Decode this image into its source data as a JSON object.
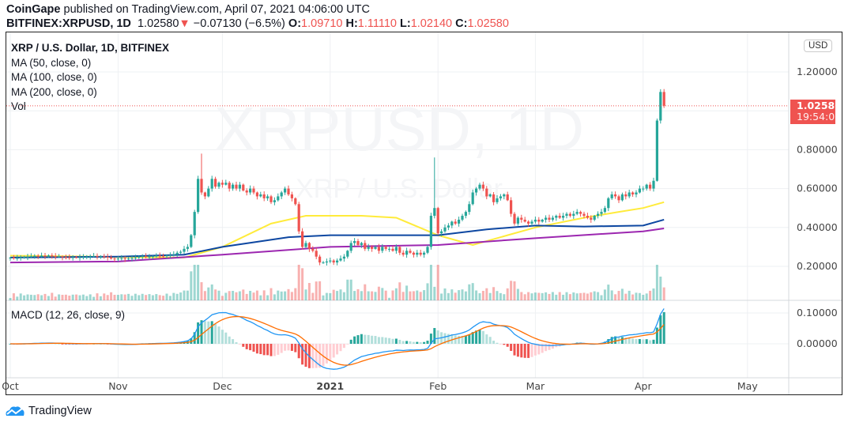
{
  "header": {
    "publisher": "CoinGape",
    "published_text": "published on TradingView.com, April 07, 2021 04:06:00 UTC",
    "symbol": "BITFINEX:XRPUSD, 1D",
    "last": "1.02580",
    "change": "−0.07130 (−6.5%)",
    "o_label": "O:",
    "o": "1.09710",
    "h_label": "H:",
    "h": "1.11110",
    "l_label": "L:",
    "l": "1.02140",
    "c_label": "C:",
    "c": "1.02580",
    "down_color": "#ef5350"
  },
  "legend": {
    "title": "XRP / U.S. Dollar, 1D, BITFINEX",
    "ma50": "MA (50, close, 0)",
    "ma100": "MA (100, close, 0)",
    "ma200": "MA (200, close, 0)",
    "vol": "Vol",
    "macd": "MACD (12, 26, close, 9)"
  },
  "watermark": {
    "line1": "XRPUSD, 1D",
    "line2": "XRP / U.S. Dollar"
  },
  "price_axis": {
    "currency": "USD",
    "last_price": "1.02580",
    "countdown": "19:54:02"
  },
  "footer": {
    "brand": "TradingView"
  },
  "chart_data": {
    "type": "candlestick",
    "start_date": "2020-10-01",
    "closes": [
      0.245,
      0.242,
      0.243,
      0.246,
      0.248,
      0.25,
      0.252,
      0.254,
      0.252,
      0.255,
      0.253,
      0.256,
      0.252,
      0.25,
      0.251,
      0.247,
      0.246,
      0.245,
      0.247,
      0.245,
      0.247,
      0.248,
      0.25,
      0.251,
      0.253,
      0.25,
      0.252,
      0.249,
      0.246,
      0.24,
      0.238,
      0.24,
      0.242,
      0.238,
      0.24,
      0.243,
      0.245,
      0.25,
      0.252,
      0.248,
      0.25,
      0.252,
      0.255,
      0.254,
      0.253,
      0.256,
      0.258,
      0.262,
      0.27,
      0.275,
      0.29,
      0.3,
      0.36,
      0.48,
      0.65,
      0.58,
      0.56,
      0.6,
      0.65,
      0.61,
      0.63,
      0.62,
      0.63,
      0.6,
      0.62,
      0.6,
      0.62,
      0.59,
      0.58,
      0.6,
      0.58,
      0.56,
      0.57,
      0.55,
      0.56,
      0.53,
      0.54,
      0.56,
      0.58,
      0.6,
      0.57,
      0.55,
      0.52,
      0.38,
      0.3,
      0.32,
      0.29,
      0.28,
      0.25,
      0.22,
      0.22,
      0.225,
      0.23,
      0.22,
      0.23,
      0.24,
      0.25,
      0.28,
      0.32,
      0.33,
      0.31,
      0.32,
      0.29,
      0.3,
      0.29,
      0.3,
      0.28,
      0.3,
      0.29,
      0.29,
      0.28,
      0.3,
      0.27,
      0.26,
      0.28,
      0.27,
      0.26,
      0.27,
      0.26,
      0.27,
      0.3,
      0.46,
      0.5,
      0.37,
      0.38,
      0.4,
      0.41,
      0.43,
      0.42,
      0.44,
      0.46,
      0.48,
      0.52,
      0.58,
      0.6,
      0.62,
      0.6,
      0.56,
      0.57,
      0.53,
      0.55,
      0.56,
      0.57,
      0.54,
      0.47,
      0.42,
      0.45,
      0.44,
      0.43,
      0.42,
      0.43,
      0.44,
      0.43,
      0.44,
      0.45,
      0.44,
      0.45,
      0.46,
      0.45,
      0.46,
      0.47,
      0.46,
      0.47,
      0.48,
      0.47,
      0.46,
      0.45,
      0.44,
      0.46,
      0.47,
      0.48,
      0.5,
      0.55,
      0.57,
      0.56,
      0.54,
      0.57,
      0.56,
      0.58,
      0.57,
      0.58,
      0.6,
      0.6,
      0.62,
      0.6,
      0.64,
      0.95,
      1.097,
      1.0258
    ],
    "high_overrides": {
      "55": 0.78,
      "122": 0.76,
      "187": 1.1111
    },
    "ma_series": [
      {
        "name": "MA (50, close, 0)",
        "color": "#ffeb3b",
        "points": [
          [
            0,
            0.255
          ],
          [
            31,
            0.248
          ],
          [
            50,
            0.245
          ],
          [
            61,
            0.3
          ],
          [
            75,
            0.42
          ],
          [
            85,
            0.46
          ],
          [
            101,
            0.46
          ],
          [
            111,
            0.45
          ],
          [
            123,
            0.36
          ],
          [
            133,
            0.31
          ],
          [
            143,
            0.36
          ],
          [
            151,
            0.4
          ],
          [
            165,
            0.45
          ],
          [
            175,
            0.48
          ],
          [
            182,
            0.5
          ],
          [
            188,
            0.53
          ]
        ]
      },
      {
        "name": "MA (100, close, 0)",
        "color": "#0d47a1",
        "points": [
          [
            0,
            0.245
          ],
          [
            31,
            0.25
          ],
          [
            50,
            0.26
          ],
          [
            61,
            0.3
          ],
          [
            80,
            0.35
          ],
          [
            92,
            0.36
          ],
          [
            123,
            0.36
          ],
          [
            137,
            0.39
          ],
          [
            151,
            0.41
          ],
          [
            165,
            0.405
          ],
          [
            182,
            0.41
          ],
          [
            188,
            0.44
          ]
        ]
      },
      {
        "name": "MA (200, close, 0)",
        "color": "#9c27b0",
        "points": [
          [
            0,
            0.22
          ],
          [
            31,
            0.225
          ],
          [
            61,
            0.26
          ],
          [
            92,
            0.3
          ],
          [
            123,
            0.31
          ],
          [
            151,
            0.345
          ],
          [
            182,
            0.38
          ],
          [
            188,
            0.395
          ]
        ]
      }
    ],
    "price_ticks": [
      "1.20000",
      "0.80000",
      "0.60000",
      "0.40000",
      "0.20000"
    ],
    "price_tick_values": [
      1.2,
      0.8,
      0.6,
      0.4,
      0.2
    ],
    "macd_ticks": [
      "0.10000",
      "0.00000"
    ],
    "macd_tick_values": [
      0.1,
      0.0
    ],
    "time_ticks": [
      "Oct",
      "Nov",
      "Dec",
      "2021",
      "Feb",
      "Mar",
      "Apr",
      "May"
    ],
    "time_tick_days": [
      0,
      31,
      61,
      92,
      123,
      151,
      182,
      212
    ],
    "colors": {
      "up": "#26a69a",
      "down": "#ef5350",
      "macd": "#2196f3",
      "signal": "#ff6d00"
    }
  }
}
